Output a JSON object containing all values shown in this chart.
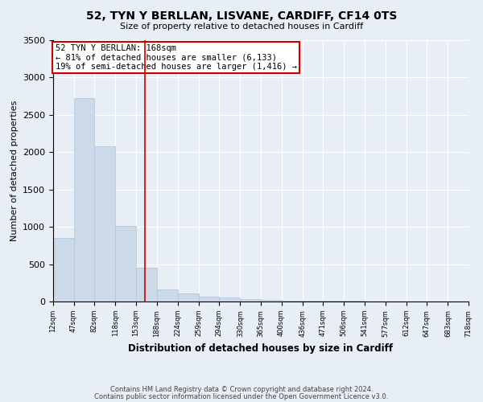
{
  "title": "52, TYN Y BERLLAN, LISVANE, CARDIFF, CF14 0TS",
  "subtitle": "Size of property relative to detached houses in Cardiff",
  "xlabel": "Distribution of detached houses by size in Cardiff",
  "ylabel": "Number of detached properties",
  "footnote1": "Contains HM Land Registry data © Crown copyright and database right 2024.",
  "footnote2": "Contains public sector information licensed under the Open Government Licence v3.0.",
  "annotation_line1": "52 TYN Y BERLLAN: 168sqm",
  "annotation_line2": "← 81% of detached houses are smaller (6,133)",
  "annotation_line3": "19% of semi-detached houses are larger (1,416) →",
  "property_size": 168,
  "bin_edges": [
    12,
    47,
    82,
    118,
    153,
    188,
    224,
    259,
    294,
    330,
    365,
    400,
    436,
    471,
    506,
    541,
    577,
    612,
    647,
    683,
    718
  ],
  "bar_heights": [
    850,
    2720,
    2080,
    1010,
    450,
    160,
    105,
    60,
    50,
    35,
    20,
    15,
    12,
    10,
    8,
    5,
    4,
    3,
    2,
    2
  ],
  "bar_color": "#ccd9e8",
  "bar_edge_color": "#b0c4d8",
  "vline_color": "#cc0000",
  "annotation_box_color": "#cc0000",
  "background_color": "#e8eef5",
  "grid_color": "#ffffff",
  "ylim": [
    0,
    3500
  ],
  "yticks": [
    0,
    500,
    1000,
    1500,
    2000,
    2500,
    3000,
    3500
  ],
  "title_fontsize": 10,
  "subtitle_fontsize": 8,
  "ylabel_fontsize": 8,
  "xlabel_fontsize": 8.5,
  "xtick_fontsize": 6,
  "ytick_fontsize": 8,
  "footnote_fontsize": 6,
  "annotation_fontsize": 7.5
}
